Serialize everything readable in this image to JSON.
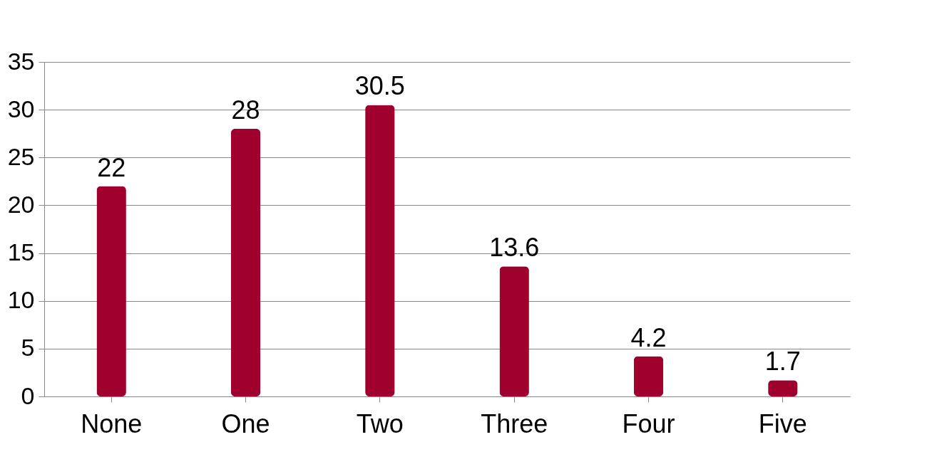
{
  "chart_data": {
    "type": "bar",
    "categories": [
      "None",
      "One",
      "Two",
      "Three",
      "Four",
      "Five"
    ],
    "values": [
      22,
      28,
      30.5,
      13.6,
      4.2,
      1.7
    ],
    "color": "#a0002e",
    "ylim": [
      0,
      35
    ],
    "yticks": [
      0,
      5,
      10,
      15,
      20,
      25,
      30,
      35
    ],
    "grid": "y",
    "data_labels": true
  }
}
